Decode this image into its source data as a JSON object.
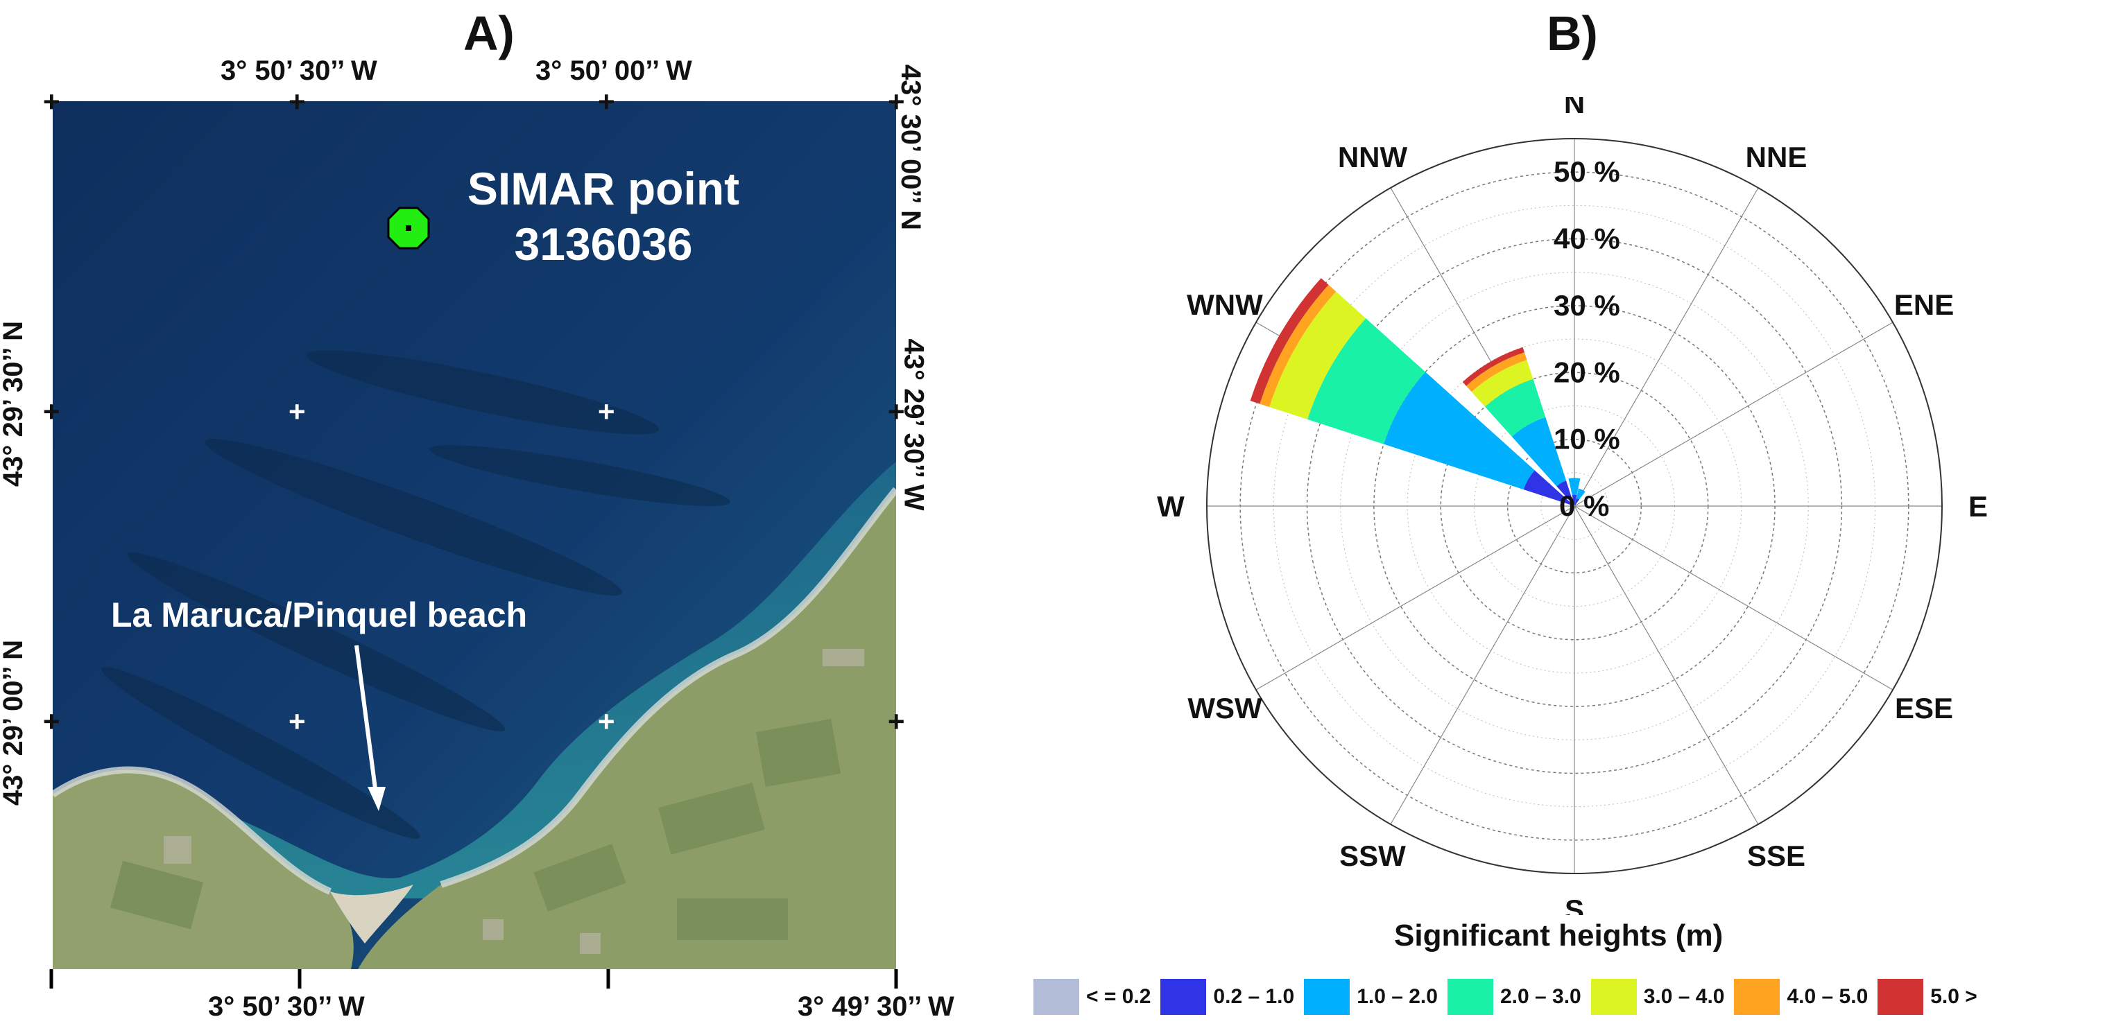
{
  "panels": {
    "a_label": "A)",
    "b_label": "B)"
  },
  "map": {
    "top_ticks": [
      "3° 50’ 30’’ W",
      "3° 50’ 00’’ W"
    ],
    "bottom_ticks": [
      "3° 50’ 30’’ W",
      "3° 49’ 30’’ W"
    ],
    "left_ticks": [
      "43° 29’ 30’’ N",
      "43° 29’ 00’’ N"
    ],
    "right_ticks": [
      "43° 30’ 00’’ N",
      "43° 29’ 30’’ W"
    ],
    "simar_line1": "SIMAR point",
    "simar_line2": "3136036",
    "beach_label": "La Maruca/Pinquel beach",
    "marker_color": "#22ee11"
  },
  "chart_data": {
    "type": "polar-stacked-bar",
    "title": "Significant heights (m)",
    "directions": [
      "N",
      "NNE",
      "ENE",
      "E",
      "ESE",
      "SSE",
      "S",
      "SSW",
      "WSW",
      "W",
      "WNW",
      "NNW"
    ],
    "radial_ticks": [
      "0 %",
      "10 %",
      "20 %",
      "30 %",
      "40 %",
      "50 %"
    ],
    "rmax": 55,
    "bins": [
      {
        "label": "< = 0.2",
        "color": "#b3bcd6"
      },
      {
        "label": "0.2 – 1.0",
        "color": "#2f35e6"
      },
      {
        "label": "1.0 – 2.0",
        "color": "#00b0ff"
      },
      {
        "label": "2.0 – 3.0",
        "color": "#19f2a6"
      },
      {
        "label": "3.0 – 4.0",
        "color": "#dcf522"
      },
      {
        "label": "4.0 – 5.0",
        "color": "#ffa321"
      },
      {
        "label": "5.0 >",
        "color": "#d13232"
      }
    ],
    "sectors": [
      {
        "direction": "NNW",
        "center_deg": 330,
        "values": [
          0,
          4,
          10,
          6,
          3,
          1.2,
          0.8
        ]
      },
      {
        "direction": "N",
        "center_deg": 0,
        "values": [
          0.2,
          1.5,
          2.5,
          0,
          0,
          0,
          0
        ]
      },
      {
        "direction": "WNW",
        "center_deg": 300,
        "values": [
          0,
          8,
          22,
          12,
          6,
          1.5,
          1.5
        ]
      },
      {
        "direction": "NNE",
        "center_deg": 25,
        "values": [
          0.2,
          1,
          1.5,
          0,
          0,
          0,
          0
        ]
      }
    ]
  }
}
